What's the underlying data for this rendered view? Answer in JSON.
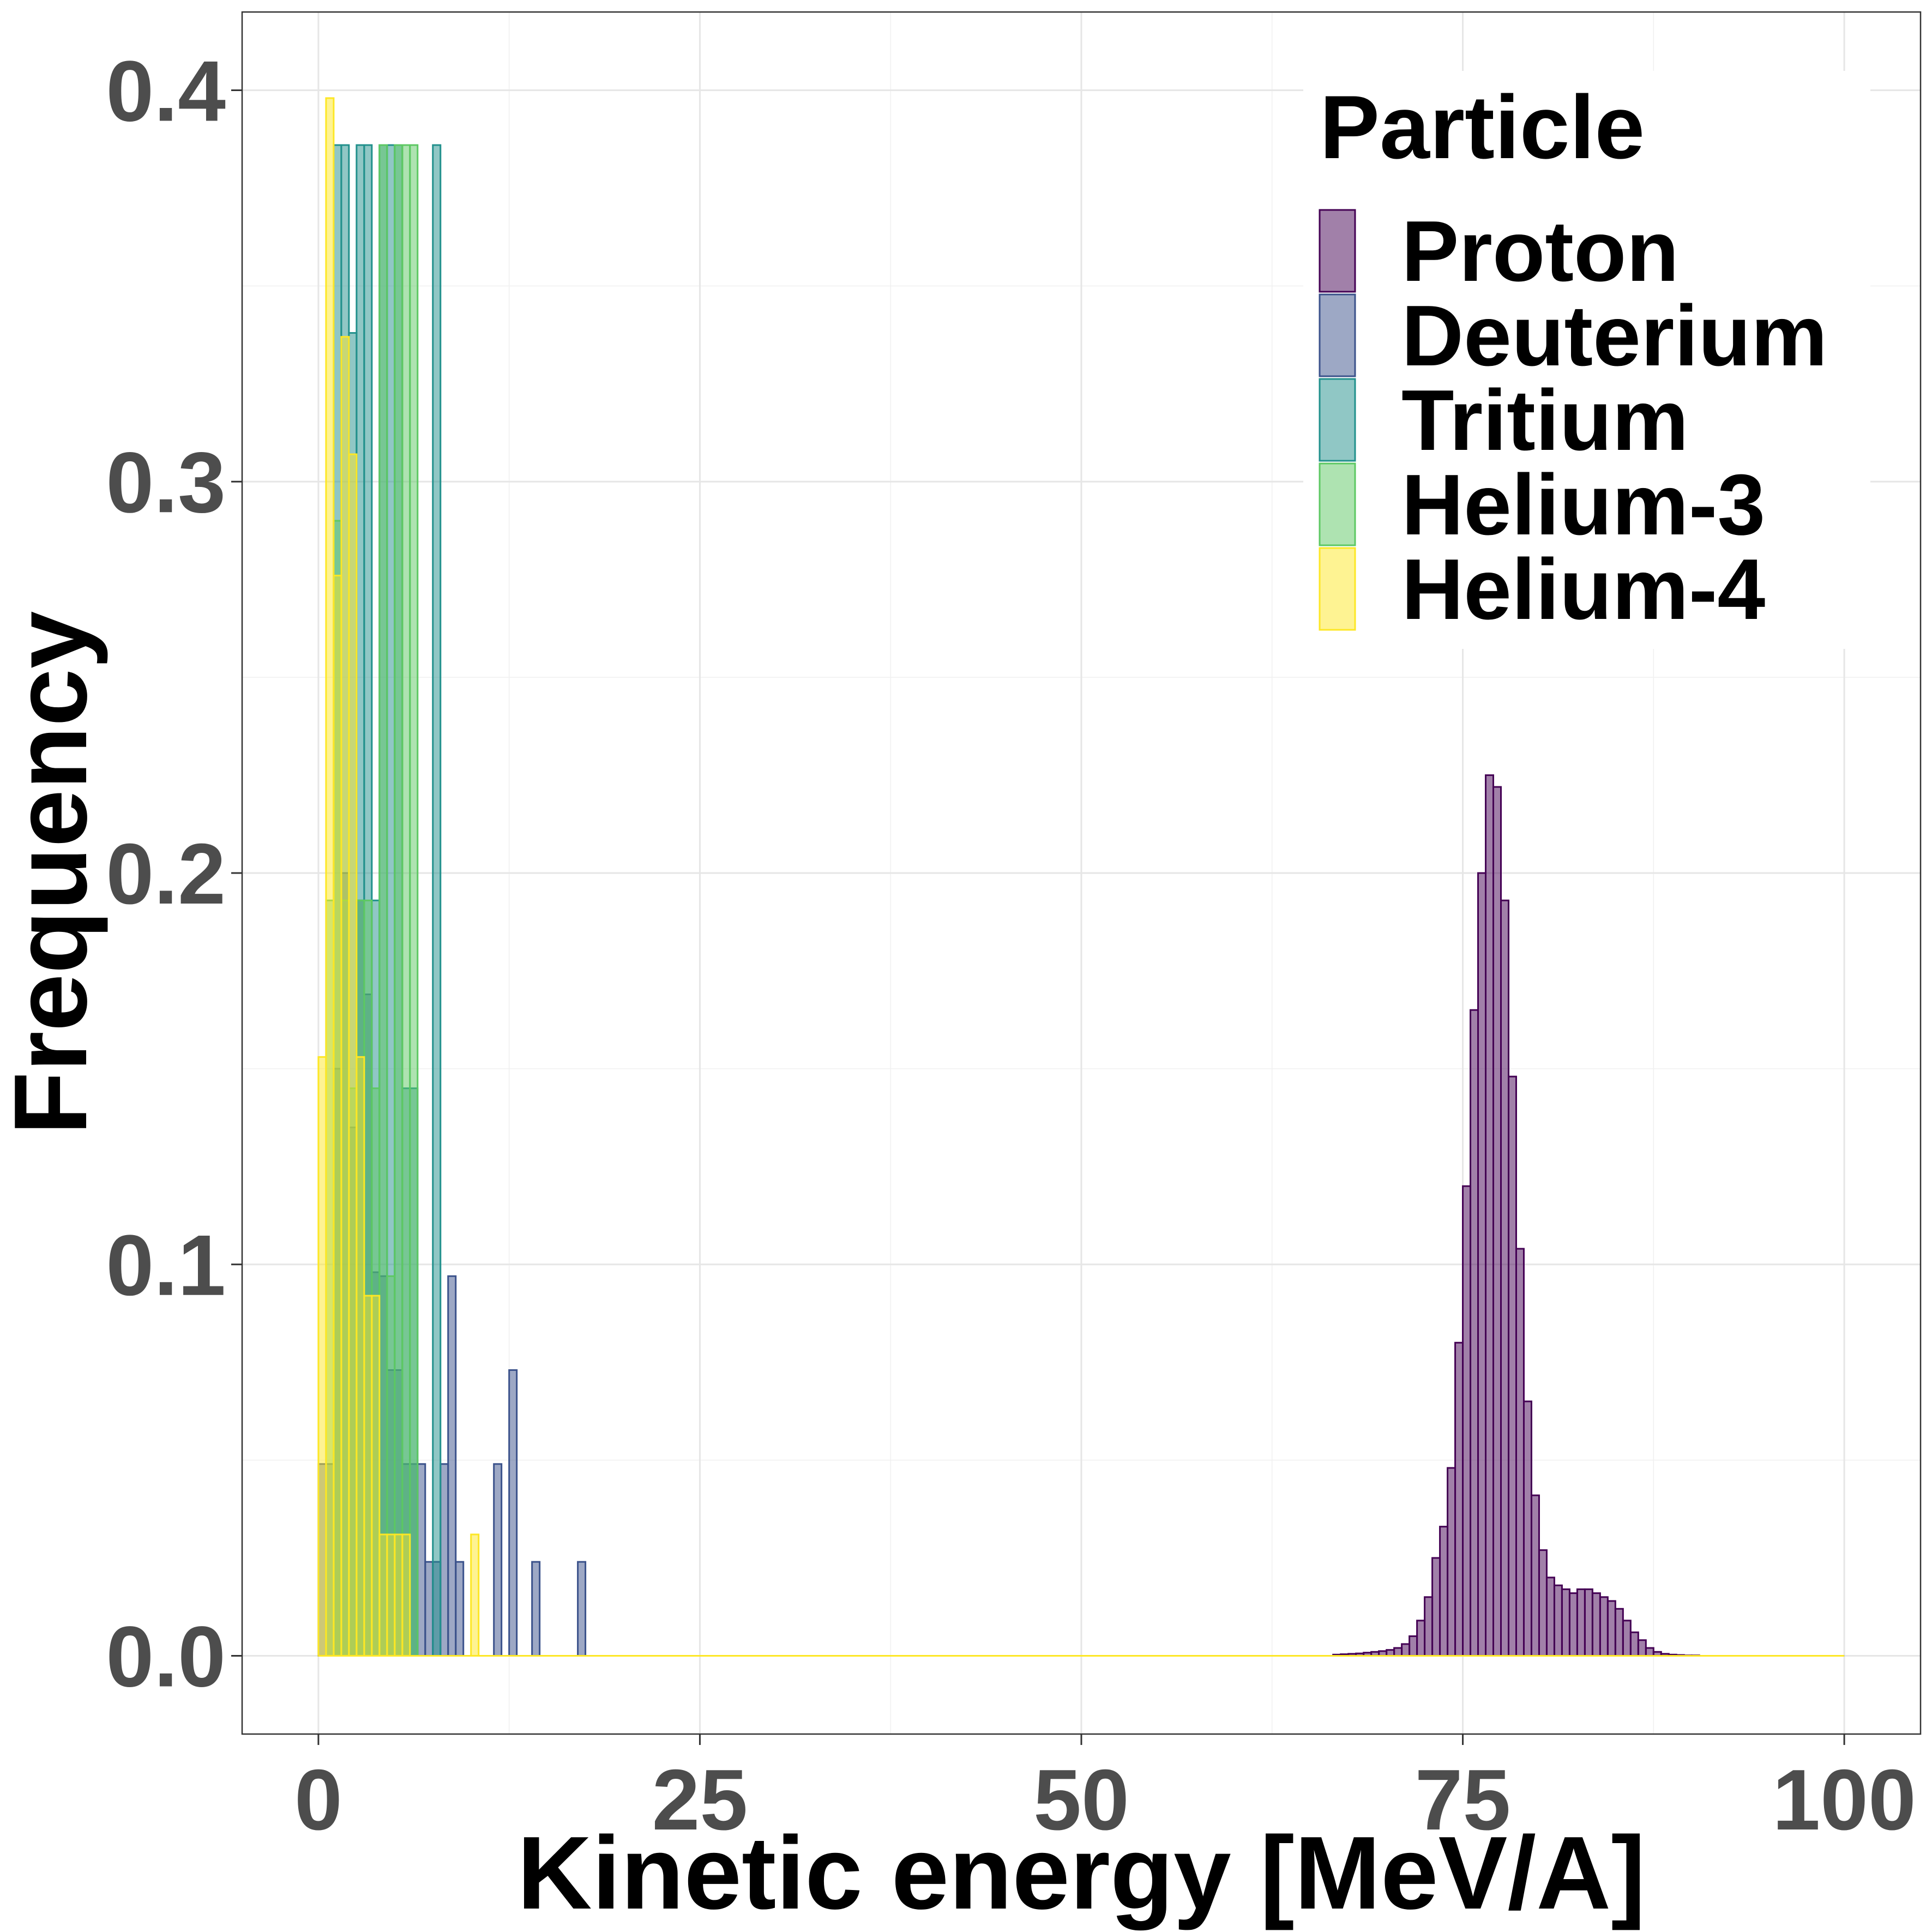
{
  "chart_data": {
    "type": "bar",
    "title": "",
    "xlabel": "Kinetic energy [MeV/A]",
    "ylabel": "Frequency",
    "xlim": [
      -5,
      105
    ],
    "ylim": [
      -0.02,
      0.42
    ],
    "x_ticks": [
      0,
      25,
      50,
      75,
      100
    ],
    "x_tick_labels": [
      "0",
      "25",
      "50",
      "75",
      "100"
    ],
    "y_ticks": [
      0.0,
      0.1,
      0.2,
      0.3,
      0.4
    ],
    "y_tick_labels": [
      "0.0",
      "0.1",
      "0.2",
      "0.3",
      "0.4"
    ],
    "grid": true,
    "bin_width": 0.5,
    "legend": {
      "title": "Particle",
      "placement": "top-right",
      "entries": [
        "Proton",
        "Deuterium",
        "Tritium",
        "Helium-3",
        "Helium-4"
      ]
    },
    "series": [
      {
        "name": "Proton",
        "fill": "#440154",
        "stroke": "#440154",
        "x": [
          66.5,
          67,
          67.5,
          68,
          68.5,
          69,
          69.5,
          70,
          70.5,
          71,
          71.5,
          72,
          72.5,
          73,
          73.5,
          74,
          74.5,
          75,
          75.5,
          76,
          76.5,
          77,
          77.5,
          78,
          78.5,
          79,
          79.5,
          80,
          80.5,
          81,
          81.5,
          82,
          82.5,
          83,
          83.5,
          84,
          84.5,
          85,
          85.5,
          86,
          86.5,
          87,
          87.5,
          88,
          88.5,
          89,
          89.5,
          90
        ],
        "values": [
          0.0003,
          0.0004,
          0.0005,
          0.0006,
          0.0008,
          0.001,
          0.0012,
          0.0015,
          0.002,
          0.003,
          0.005,
          0.009,
          0.015,
          0.025,
          0.033,
          0.048,
          0.08,
          0.12,
          0.165,
          0.2,
          0.225,
          0.222,
          0.193,
          0.148,
          0.104,
          0.065,
          0.041,
          0.027,
          0.02,
          0.018,
          0.017,
          0.016,
          0.017,
          0.017,
          0.016,
          0.015,
          0.014,
          0.012,
          0.009,
          0.006,
          0.004,
          0.002,
          0.001,
          0.0005,
          0.0003,
          0.0002,
          0.0001,
          0.0001
        ]
      },
      {
        "name": "Deuterium",
        "fill": "#3b528b",
        "stroke": "#3b528b",
        "x": [
          0,
          0.5,
          1,
          1.5,
          2,
          2.5,
          3,
          3.5,
          4,
          4.5,
          5,
          5.5,
          6,
          6.5,
          7,
          7.5,
          8,
          8.5,
          9,
          11.5,
          12.5,
          14,
          17
        ],
        "values": [
          0.049,
          0.049,
          0.15,
          0.2,
          0.135,
          0.193,
          0.169,
          0.098,
          0.097,
          0.073,
          0.073,
          0.049,
          0.049,
          0.049,
          0.024,
          0.024,
          0.049,
          0.097,
          0.024,
          0.049,
          0.073,
          0.024,
          0.024
        ]
      },
      {
        "name": "Tritium",
        "fill": "#21908c",
        "stroke": "#21908c",
        "x": [
          1,
          1.5,
          2,
          2.5,
          3,
          3.5,
          4,
          4.5,
          5,
          5.5,
          6,
          7.5
        ],
        "values": [
          0.386,
          0.386,
          0.338,
          0.386,
          0.386,
          0.193,
          0.386,
          0.386,
          0.386,
          0.145,
          0.145,
          0.386
        ]
      },
      {
        "name": "Helium-3",
        "fill": "#5dc863",
        "stroke": "#5dc863",
        "x": [
          0.5,
          1,
          1.5,
          2,
          2.5,
          3,
          3.5,
          4,
          4.5,
          5,
          5.5,
          6
        ],
        "values": [
          0.193,
          0.29,
          0.193,
          0.145,
          0.193,
          0.193,
          0.145,
          0.386,
          0.097,
          0.386,
          0.386,
          0.386
        ]
      },
      {
        "name": "Helium-4",
        "fill": "#fde725",
        "stroke": "#fde725",
        "x": [
          0,
          0.5,
          1,
          1.5,
          2,
          2.5,
          3,
          3.5,
          4,
          4.5,
          5,
          5.5,
          6,
          6.5,
          7,
          7.5,
          8,
          8.5,
          9,
          9.5,
          10
        ],
        "values": [
          0.153,
          0.398,
          0.276,
          0.337,
          0.307,
          0.153,
          0.092,
          0.092,
          0.031,
          0.031,
          0.031,
          0.031,
          0.0,
          0.0,
          0.0,
          0.0,
          0.0,
          0.0,
          0.0,
          0.0,
          0.031
        ]
      }
    ]
  }
}
